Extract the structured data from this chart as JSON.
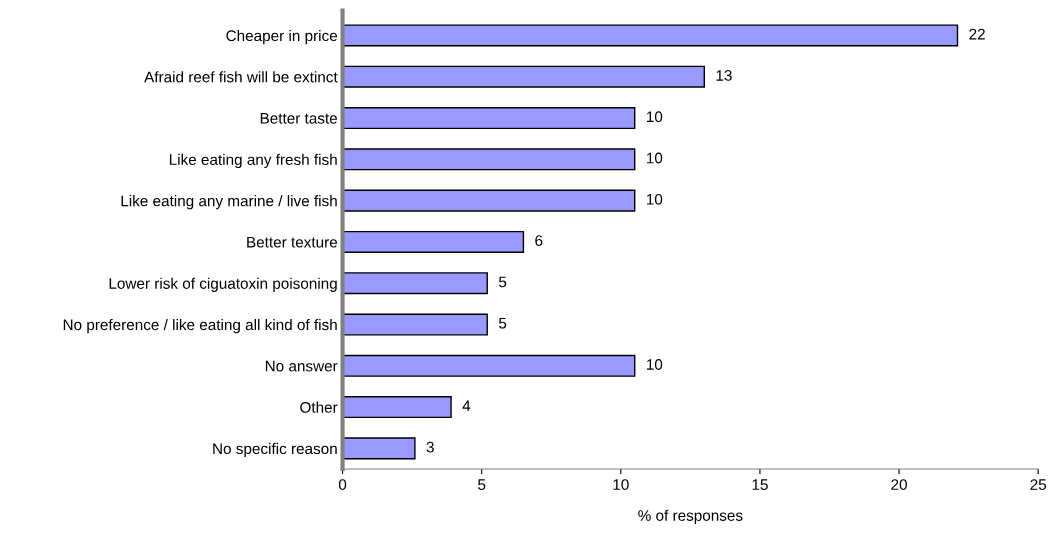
{
  "chart_data": {
    "type": "bar",
    "orientation": "horizontal",
    "xlabel": "% of responses",
    "categories": [
      "Cheaper in price",
      "Afraid reef fish will be extinct",
      "Better taste",
      "Like eating any fresh fish",
      "Like eating any marine / live fish",
      "Better texture",
      "Lower risk of ciguatoxin poisoning",
      "No preference / like eating all kind of fish",
      "No answer",
      "Other",
      "No specific reason"
    ],
    "values": [
      22.1,
      13.0,
      10.5,
      10.5,
      10.5,
      6.5,
      5.2,
      5.2,
      10.5,
      3.9,
      2.6
    ],
    "value_labels": [
      "22",
      "13",
      "10",
      "10",
      "10",
      "6",
      "5",
      "5",
      "10",
      "4",
      "3"
    ],
    "color": "#9999ff",
    "xlim": [
      0,
      25
    ],
    "xticks": [
      0,
      5,
      10,
      15,
      20,
      25
    ],
    "grid": false
  }
}
